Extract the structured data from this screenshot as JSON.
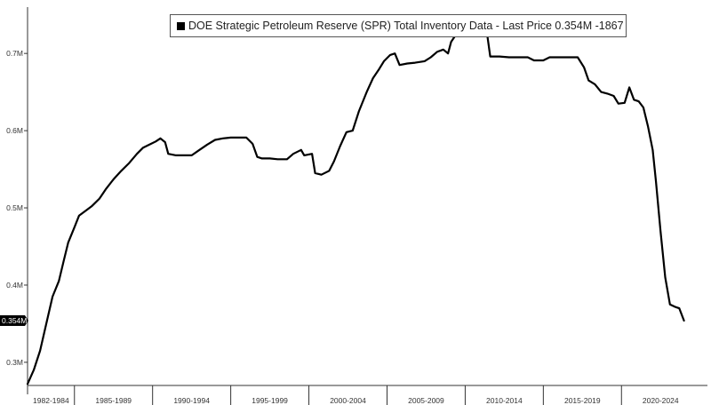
{
  "chart_data": {
    "type": "line",
    "title": "DOE Strategic Petroleum Reserve (SPR) Total Inventory Data - Last Price 0.354M -1867",
    "legend_position": "top-center",
    "grid": false,
    "ylim": [
      0.27,
      0.76
    ],
    "xlim": [
      1982.0,
      2025.5
    ],
    "y_ticks": [
      0.3,
      0.4,
      0.5,
      0.6,
      0.7
    ],
    "y_tick_labels": [
      "0.3M",
      "0.4M",
      "0.5M",
      "0.6M",
      "0.7M"
    ],
    "x_groups": [
      {
        "label": "1982-1984",
        "start": 1982,
        "end": 1985
      },
      {
        "label": "1985-1989",
        "start": 1985,
        "end": 1990
      },
      {
        "label": "1990-1994",
        "start": 1990,
        "end": 1995
      },
      {
        "label": "1995-1999",
        "start": 1995,
        "end": 2000
      },
      {
        "label": "2000-2004",
        "start": 2000,
        "end": 2005
      },
      {
        "label": "2005-2009",
        "start": 2005,
        "end": 2010
      },
      {
        "label": "2010-2014",
        "start": 2010,
        "end": 2015
      },
      {
        "label": "2015-2019",
        "start": 2015,
        "end": 2020
      },
      {
        "label": "2020-2024",
        "start": 2020,
        "end": 2025
      }
    ],
    "last_value": 0.354,
    "last_value_label": "0.354M",
    "series": [
      {
        "color": "#000000",
        "points": [
          [
            1982.0,
            0.272
          ],
          [
            1982.4,
            0.29
          ],
          [
            1982.8,
            0.315
          ],
          [
            1983.2,
            0.35
          ],
          [
            1983.6,
            0.385
          ],
          [
            1984.0,
            0.405
          ],
          [
            1984.3,
            0.43
          ],
          [
            1984.6,
            0.455
          ],
          [
            1985.0,
            0.475
          ],
          [
            1985.3,
            0.49
          ],
          [
            1985.7,
            0.496
          ],
          [
            1986.1,
            0.502
          ],
          [
            1986.6,
            0.512
          ],
          [
            1987.0,
            0.524
          ],
          [
            1987.5,
            0.537
          ],
          [
            1988.0,
            0.548
          ],
          [
            1988.5,
            0.558
          ],
          [
            1989.0,
            0.57
          ],
          [
            1989.4,
            0.578
          ],
          [
            1989.8,
            0.582
          ],
          [
            1990.2,
            0.586
          ],
          [
            1990.5,
            0.59
          ],
          [
            1990.8,
            0.585
          ],
          [
            1991.0,
            0.57
          ],
          [
            1991.5,
            0.568
          ],
          [
            1992.0,
            0.568
          ],
          [
            1992.5,
            0.568
          ],
          [
            1993.0,
            0.575
          ],
          [
            1993.5,
            0.582
          ],
          [
            1994.0,
            0.588
          ],
          [
            1994.5,
            0.59
          ],
          [
            1995.0,
            0.591
          ],
          [
            1995.5,
            0.591
          ],
          [
            1996.0,
            0.591
          ],
          [
            1996.4,
            0.583
          ],
          [
            1996.7,
            0.566
          ],
          [
            1997.0,
            0.564
          ],
          [
            1997.5,
            0.564
          ],
          [
            1998.0,
            0.563
          ],
          [
            1998.6,
            0.563
          ],
          [
            1999.0,
            0.57
          ],
          [
            1999.5,
            0.575
          ],
          [
            1999.7,
            0.568
          ],
          [
            2000.2,
            0.57
          ],
          [
            2000.4,
            0.545
          ],
          [
            2000.8,
            0.543
          ],
          [
            2001.3,
            0.548
          ],
          [
            2001.6,
            0.56
          ],
          [
            2002.0,
            0.58
          ],
          [
            2002.4,
            0.598
          ],
          [
            2002.8,
            0.6
          ],
          [
            2003.2,
            0.625
          ],
          [
            2003.7,
            0.65
          ],
          [
            2004.1,
            0.668
          ],
          [
            2004.5,
            0.68
          ],
          [
            2004.8,
            0.69
          ],
          [
            2005.2,
            0.698
          ],
          [
            2005.5,
            0.7
          ],
          [
            2005.8,
            0.685
          ],
          [
            2006.3,
            0.687
          ],
          [
            2006.8,
            0.688
          ],
          [
            2007.4,
            0.69
          ],
          [
            2007.8,
            0.695
          ],
          [
            2008.2,
            0.702
          ],
          [
            2008.6,
            0.705
          ],
          [
            2008.9,
            0.7
          ],
          [
            2009.1,
            0.715
          ],
          [
            2009.4,
            0.724
          ],
          [
            2009.8,
            0.726
          ],
          [
            2010.4,
            0.726
          ],
          [
            2011.0,
            0.726
          ],
          [
            2011.4,
            0.726
          ],
          [
            2011.6,
            0.696
          ],
          [
            2012.2,
            0.696
          ],
          [
            2012.8,
            0.695
          ],
          [
            2013.4,
            0.695
          ],
          [
            2014.0,
            0.695
          ],
          [
            2014.4,
            0.691
          ],
          [
            2015.0,
            0.691
          ],
          [
            2015.4,
            0.695
          ],
          [
            2016.0,
            0.695
          ],
          [
            2016.6,
            0.695
          ],
          [
            2017.2,
            0.695
          ],
          [
            2017.6,
            0.682
          ],
          [
            2017.9,
            0.665
          ],
          [
            2018.3,
            0.66
          ],
          [
            2018.7,
            0.65
          ],
          [
            2019.1,
            0.648
          ],
          [
            2019.5,
            0.645
          ],
          [
            2019.8,
            0.635
          ],
          [
            2020.2,
            0.636
          ],
          [
            2020.5,
            0.656
          ],
          [
            2020.8,
            0.64
          ],
          [
            2021.1,
            0.638
          ],
          [
            2021.4,
            0.63
          ],
          [
            2021.7,
            0.605
          ],
          [
            2022.0,
            0.575
          ],
          [
            2022.2,
            0.535
          ],
          [
            2022.5,
            0.47
          ],
          [
            2022.8,
            0.41
          ],
          [
            2023.1,
            0.375
          ],
          [
            2023.4,
            0.372
          ],
          [
            2023.7,
            0.37
          ],
          [
            2024.0,
            0.354
          ]
        ]
      }
    ]
  }
}
